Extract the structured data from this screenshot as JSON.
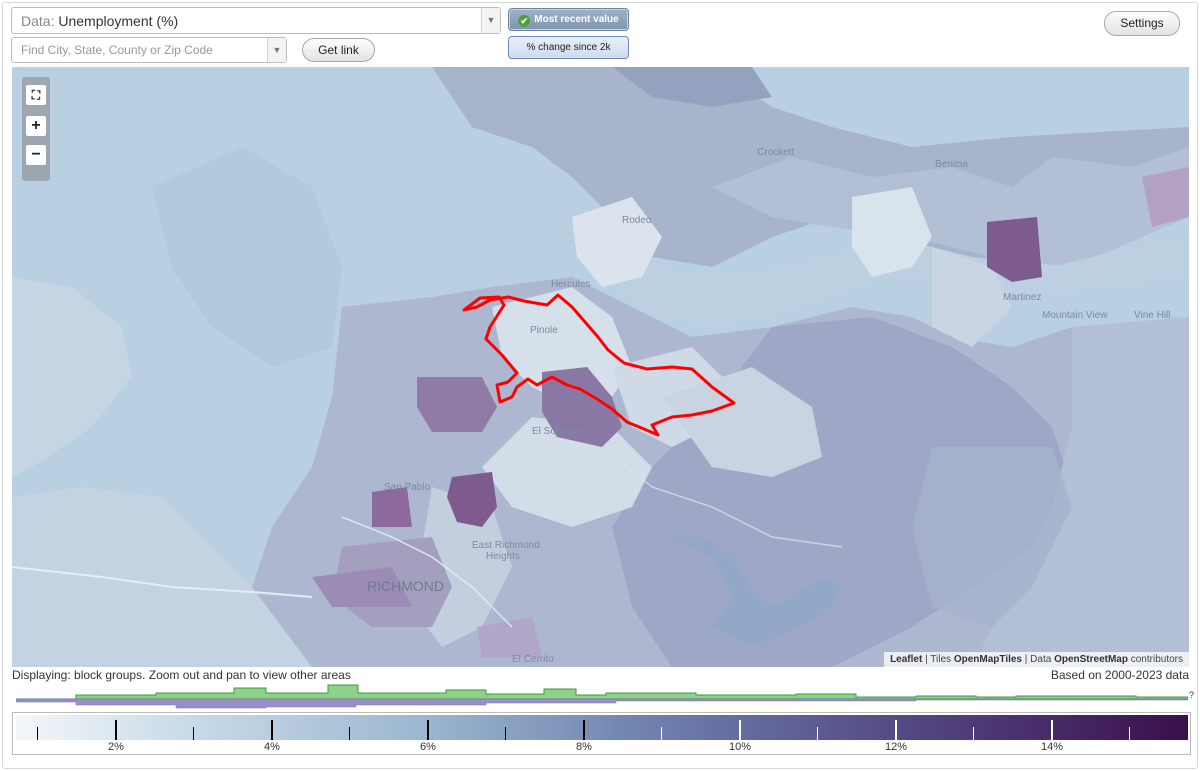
{
  "header": {
    "data_label": "Data:",
    "data_value": "Unemployment (%)",
    "search_placeholder": "Find City, State, County or Zip Code",
    "get_link": "Get link",
    "most_recent": "Most recent value",
    "pct_change": "% change since 2k",
    "settings": "Settings"
  },
  "map": {
    "places": {
      "crockett": "Crockett",
      "benicia": "Benicia",
      "rodeo": "Rodeo",
      "hercules": "Hercules",
      "pinole": "Pinole",
      "martinez": "Martinez",
      "mountain_view": "Mountain View",
      "vine_hill": "Vine Hill",
      "el_sobrante": "El Sobrante",
      "san_pablo": "San Pablo",
      "east_richmond": "East Richmond",
      "heights": "Heights",
      "richmond": "RICHMOND",
      "el_cerrito": "El Cerrito"
    },
    "attribution": {
      "leaflet": "Leaflet",
      "tiles": "Tiles",
      "tiles_src": "OpenMapTiles",
      "data": "Data",
      "data_src": "OpenStreetMap",
      "contributors": "contributors"
    },
    "colors": {
      "highlight_outline": "#ff0000",
      "water": "#b7cde0"
    }
  },
  "status": {
    "displaying": "Displaying: block groups. Zoom out and pan to view other areas",
    "based_on": "Based on 2000-2023 data",
    "histogram_q": "?"
  },
  "legend": {
    "labels": [
      "2%",
      "4%",
      "6%",
      "8%",
      "10%",
      "12%",
      "14%"
    ],
    "colors": {
      "low": "#f3f7fa",
      "mid": "#7386b1",
      "high": "#3a0f4a"
    }
  }
}
